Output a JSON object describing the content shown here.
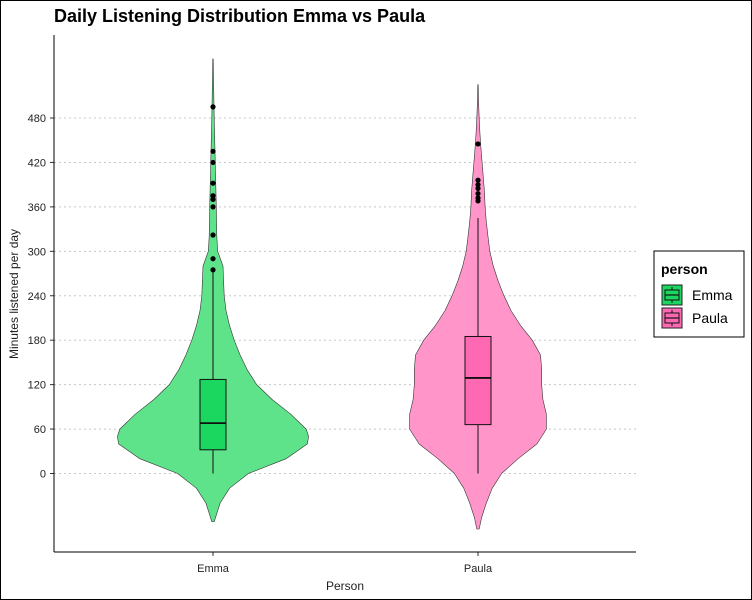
{
  "title": "Daily Listening Distribution Emma vs Paula",
  "chart_data": {
    "type": "violin",
    "title": "Daily Listening Distribution Emma vs Paula",
    "xlabel": "Person",
    "ylabel": "Minutes listened per day",
    "categories": [
      "Emma",
      "Paula"
    ],
    "y_ticks": [
      0,
      60,
      120,
      180,
      240,
      300,
      360,
      420,
      480
    ],
    "ylim": [
      -115,
      590
    ],
    "grid": "horizontal dotted",
    "legend": {
      "title": "person",
      "position": "right",
      "entries": [
        {
          "label": "Emma",
          "color": "#1bd760"
        },
        {
          "label": "Paula",
          "color": "#ff69b4"
        }
      ]
    },
    "series": [
      {
        "category": "Emma",
        "violin_color": "#5ee38a",
        "box_color": "#1bd760",
        "violin_range": [
          -65,
          560
        ],
        "box": {
          "min": 0,
          "q1": 32,
          "median": 68,
          "q3": 127,
          "max": 272
        },
        "outliers": [
          275,
          290,
          322,
          360,
          370,
          375,
          392,
          420,
          435,
          495
        ],
        "density_profile": [
          [
            -65,
            0.01
          ],
          [
            -40,
            0.06
          ],
          [
            -20,
            0.14
          ],
          [
            0,
            0.3
          ],
          [
            20,
            0.62
          ],
          [
            40,
            0.8
          ],
          [
            50,
            0.81
          ],
          [
            60,
            0.79
          ],
          [
            80,
            0.66
          ],
          [
            100,
            0.5
          ],
          [
            120,
            0.37
          ],
          [
            140,
            0.29
          ],
          [
            160,
            0.23
          ],
          [
            180,
            0.18
          ],
          [
            200,
            0.14
          ],
          [
            220,
            0.11
          ],
          [
            240,
            0.095
          ],
          [
            260,
            0.09
          ],
          [
            280,
            0.085
          ],
          [
            300,
            0.04
          ],
          [
            320,
            0.032
          ],
          [
            360,
            0.028
          ],
          [
            400,
            0.022
          ],
          [
            440,
            0.016
          ],
          [
            480,
            0.01
          ],
          [
            520,
            0.006
          ],
          [
            560,
            0.002
          ]
        ]
      },
      {
        "category": "Paula",
        "violin_color": "#ff95c9",
        "box_color": "#ff69b4",
        "violin_range": [
          -75,
          525
        ],
        "box": {
          "min": 0,
          "q1": 66,
          "median": 129,
          "q3": 185,
          "max": 345
        },
        "outliers": [
          368,
          372,
          378,
          385,
          390,
          396,
          445
        ],
        "density_profile": [
          [
            -75,
            0.01
          ],
          [
            -60,
            0.03
          ],
          [
            -40,
            0.07
          ],
          [
            -20,
            0.12
          ],
          [
            0,
            0.2
          ],
          [
            20,
            0.34
          ],
          [
            40,
            0.5
          ],
          [
            60,
            0.58
          ],
          [
            80,
            0.58
          ],
          [
            100,
            0.55
          ],
          [
            120,
            0.54
          ],
          [
            140,
            0.54
          ],
          [
            160,
            0.53
          ],
          [
            180,
            0.46
          ],
          [
            200,
            0.36
          ],
          [
            220,
            0.28
          ],
          [
            240,
            0.22
          ],
          [
            260,
            0.17
          ],
          [
            280,
            0.13
          ],
          [
            300,
            0.1
          ],
          [
            320,
            0.085
          ],
          [
            340,
            0.07
          ],
          [
            360,
            0.06
          ],
          [
            380,
            0.055
          ],
          [
            400,
            0.045
          ],
          [
            420,
            0.035
          ],
          [
            440,
            0.025
          ],
          [
            460,
            0.016
          ],
          [
            480,
            0.01
          ],
          [
            500,
            0.005
          ],
          [
            525,
            0.002
          ]
        ]
      }
    ]
  }
}
